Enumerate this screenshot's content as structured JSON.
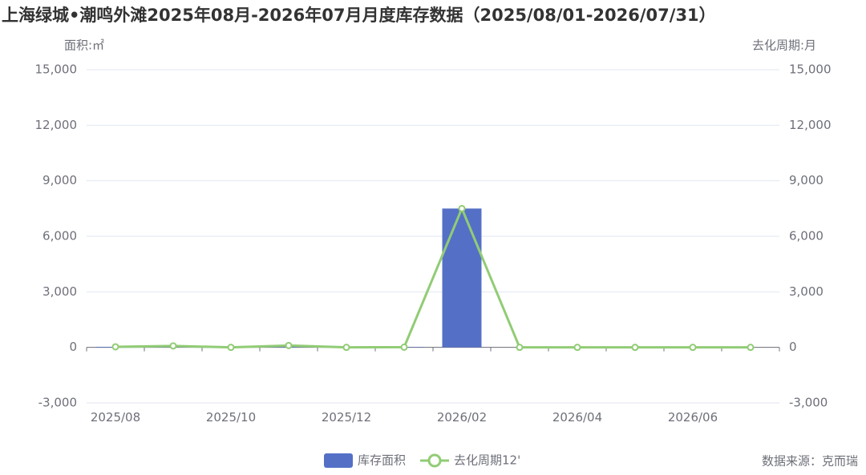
{
  "chart_data": {
    "type": "bar_line",
    "title": "上海绿城•潮鸣外滩2025年08月-2026年07月月度库存数据（2025/08/01-2026/07/31）",
    "y_label": "面积:㎡",
    "y2_label": "去化周期:月",
    "source": "数据来源：克而瑞",
    "categories": [
      "2025/08",
      null,
      "2025/10",
      null,
      "2025/12",
      null,
      "2026/02",
      null,
      "2026/04",
      null,
      "2026/06",
      null
    ],
    "series": [
      {
        "name": "库存面积",
        "color": "#5470c6",
        "kind": "bar",
        "values": [
          30,
          40,
          0,
          80,
          0,
          20,
          7500,
          0,
          0,
          0,
          0,
          0
        ]
      },
      {
        "name": "去化周期12'",
        "color": "#91cc75",
        "kind": "line",
        "axis": "y2",
        "values": [
          30,
          80,
          0,
          100,
          0,
          10,
          7500,
          0,
          0,
          0,
          0,
          0
        ]
      }
    ],
    "ylim": [
      -3000,
      15000
    ],
    "yticks": [
      {
        "value": -3000,
        "label": "-3,000"
      },
      0,
      {
        "value": 3000,
        "label": "3,000"
      },
      {
        "value": 6000,
        "label": "6,000"
      },
      {
        "value": 9000,
        "label": "9,000"
      },
      {
        "value": 12000,
        "label": "12,000"
      },
      {
        "value": 15000,
        "label": "15,000"
      }
    ],
    "y2lim": [
      -3000,
      15000
    ],
    "y2ticks": [
      {
        "value": -3000,
        "label": "-3,000"
      },
      0,
      {
        "value": 3000,
        "label": "3,000"
      },
      {
        "value": 6000,
        "label": "6,000"
      },
      {
        "value": 9000,
        "label": "9,000"
      },
      {
        "value": 12000,
        "label": "12,000"
      },
      {
        "value": 15000,
        "label": "15,000"
      }
    ],
    "grid": true
  }
}
